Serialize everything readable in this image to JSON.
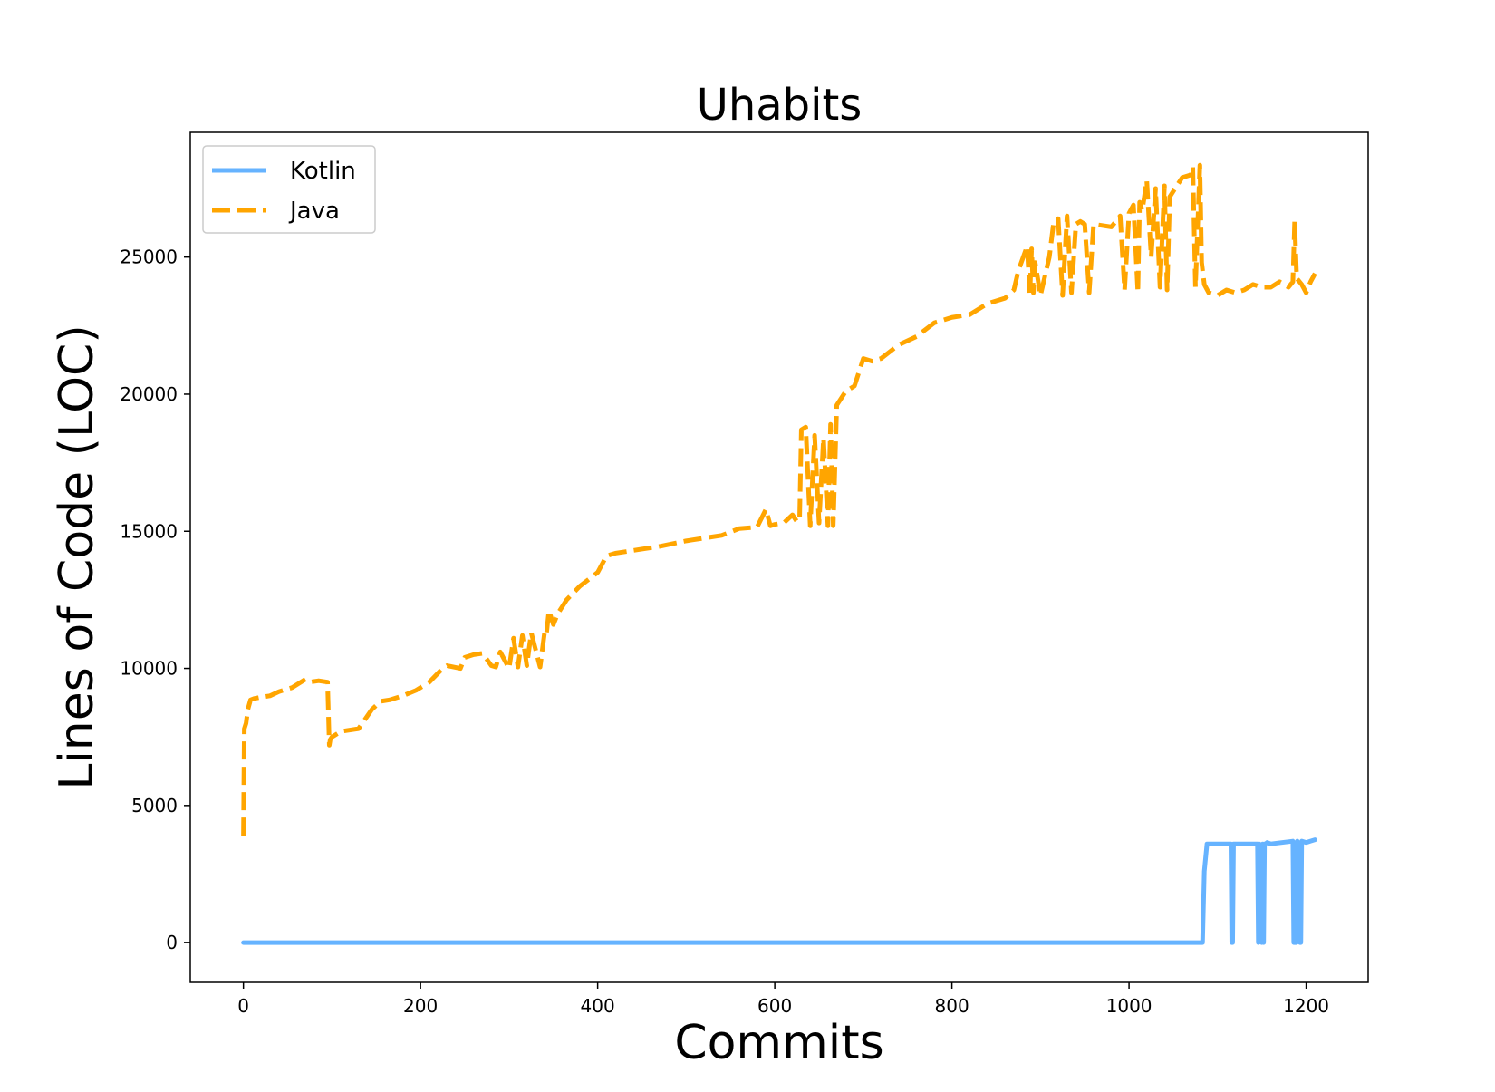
{
  "chart_data": {
    "type": "line",
    "title": "Uhabits",
    "xlabel": "Commits",
    "ylabel": "Lines of Code (LOC)",
    "xlim": [
      -60,
      1270
    ],
    "ylim": [
      -1450,
      29550
    ],
    "xticks": [
      0,
      200,
      400,
      600,
      800,
      1000,
      1200
    ],
    "yticks": [
      0,
      5000,
      10000,
      15000,
      20000,
      25000
    ],
    "xtick_labels": [
      "0",
      "200",
      "400",
      "600",
      "800",
      "1000",
      "1200"
    ],
    "ytick_labels": [
      "0",
      "5000",
      "10000",
      "15000",
      "20000",
      "25000"
    ],
    "grid": false,
    "legend_position": "top-left",
    "series": [
      {
        "name": "Kotlin",
        "color": "#66b3ff",
        "style": "solid",
        "x": [
          0,
          1083,
          1085,
          1088,
          1115,
          1116,
          1117,
          1118,
          1145,
          1146,
          1147,
          1150,
          1151,
          1152,
          1153,
          1154,
          1156,
          1160,
          1185,
          1186,
          1188,
          1189,
          1190,
          1193,
          1194,
          1195,
          1200,
          1205,
          1210
        ],
        "y": [
          0,
          0,
          2600,
          3600,
          3600,
          0,
          0,
          3600,
          3600,
          0,
          3600,
          0,
          3600,
          0,
          3600,
          3600,
          3650,
          3600,
          3700,
          0,
          0,
          0,
          3700,
          0,
          0,
          3700,
          3650,
          3700,
          3750
        ]
      },
      {
        "name": "Java",
        "color": "#ffa500",
        "style": "dashed",
        "x": [
          0,
          1,
          3,
          5,
          8,
          12,
          20,
          30,
          40,
          55,
          70,
          75,
          85,
          95,
          97,
          98,
          100,
          110,
          130,
          145,
          150,
          155,
          165,
          180,
          195,
          210,
          225,
          230,
          245,
          250,
          260,
          270,
          280,
          285,
          290,
          300,
          305,
          310,
          315,
          320,
          325,
          335,
          340,
          342,
          345,
          350,
          355,
          365,
          380,
          400,
          410,
          420,
          440,
          470,
          500,
          520,
          540,
          560,
          580,
          590,
          595,
          600,
          610,
          620,
          625,
          628,
          630,
          635,
          640,
          645,
          650,
          655,
          660,
          663,
          666,
          670,
          680,
          690,
          700,
          710,
          720,
          740,
          760,
          780,
          800,
          820,
          840,
          860,
          870,
          875,
          885,
          888,
          890,
          892,
          894,
          900,
          910,
          915,
          920,
          925,
          930,
          935,
          940,
          945,
          950,
          955,
          960,
          980,
          985,
          990,
          995,
          1000,
          1005,
          1010,
          1012,
          1015,
          1020,
          1025,
          1030,
          1035,
          1040,
          1043,
          1046,
          1050,
          1060,
          1070,
          1072,
          1075,
          1080,
          1082,
          1085,
          1090,
          1100,
          1110,
          1120,
          1130,
          1140,
          1150,
          1160,
          1170,
          1180,
          1185,
          1187,
          1189,
          1190,
          1195,
          1200,
          1205,
          1210
        ],
        "y": [
          3900,
          7800,
          8000,
          8500,
          8850,
          8900,
          8950,
          9000,
          9150,
          9300,
          9600,
          9500,
          9550,
          9500,
          7200,
          7400,
          7500,
          7700,
          7800,
          8500,
          8650,
          8800,
          8850,
          9000,
          9200,
          9500,
          10000,
          10100,
          10000,
          10400,
          10500,
          10550,
          10100,
          10050,
          10600,
          10000,
          11100,
          10050,
          11200,
          10100,
          11300,
          10050,
          11300,
          11200,
          12100,
          11600,
          12000,
          12500,
          13000,
          13500,
          14100,
          14200,
          14300,
          14450,
          14650,
          14750,
          14850,
          15100,
          15150,
          15800,
          15200,
          15250,
          15300,
          15600,
          15350,
          15400,
          18700,
          18800,
          15200,
          18500,
          15300,
          18400,
          15200,
          18900,
          15200,
          19600,
          20100,
          20300,
          21300,
          21200,
          21300,
          21800,
          22100,
          22600,
          22800,
          22900,
          23300,
          23500,
          23800,
          24500,
          25400,
          23600,
          25300,
          23700,
          24800,
          23600,
          25000,
          26300,
          26400,
          23600,
          26500,
          23700,
          26200,
          26300,
          26200,
          23700,
          26200,
          26100,
          26300,
          26500,
          23800,
          26600,
          26900,
          23700,
          27000,
          26700,
          27800,
          25000,
          27500,
          23900,
          27600,
          23800,
          27200,
          27400,
          27900,
          28000,
          28300,
          23900,
          28350,
          24800,
          24000,
          23700,
          23600,
          23800,
          23700,
          23800,
          24000,
          23900,
          23900,
          24100,
          23900,
          24100,
          26300,
          24500,
          24200,
          24000,
          23700,
          24100,
          24400
        ]
      }
    ]
  }
}
